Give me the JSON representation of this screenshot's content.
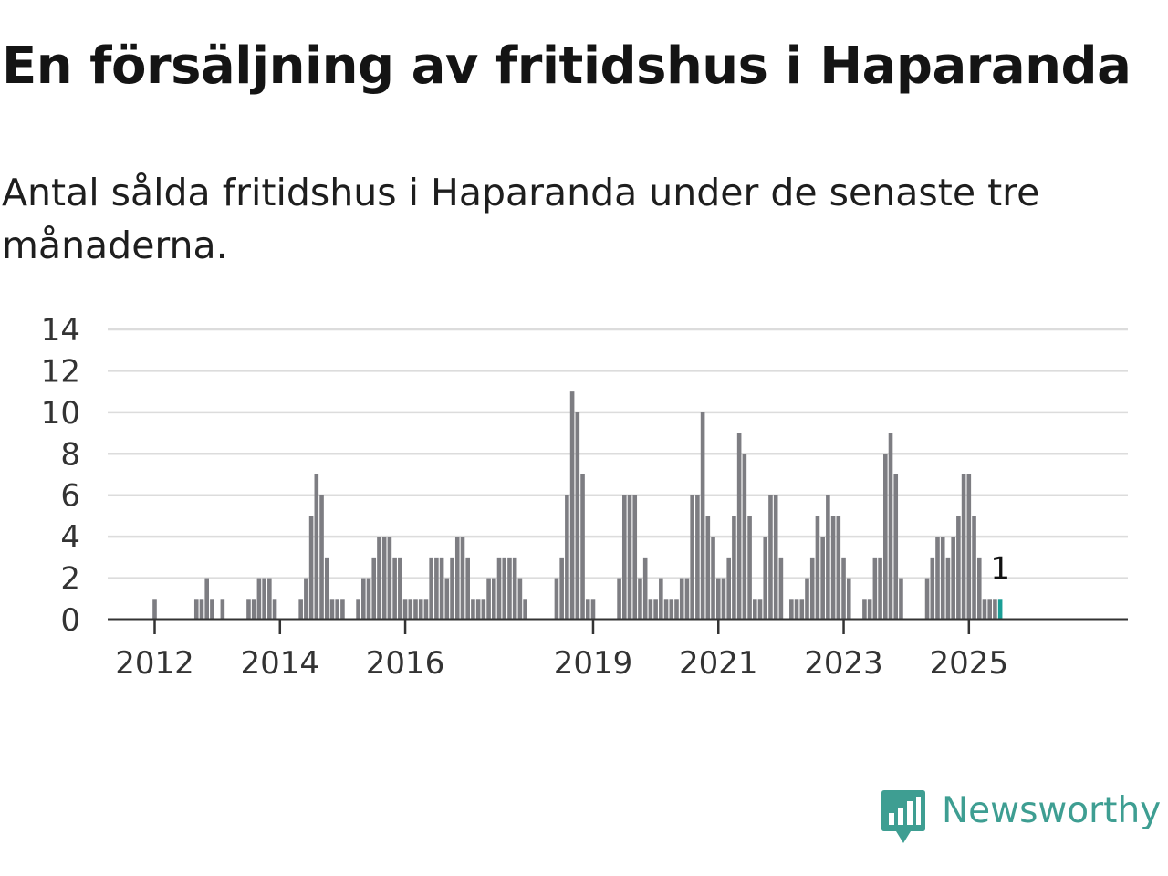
{
  "header": {
    "title": "En försäljning av fritidshus i Haparanda",
    "subtitle": "Antal sålda fritidshus i Haparanda under de senaste tre månaderna."
  },
  "brand": {
    "name": "Newsworthy",
    "logo_icon": "newsworthy-chart-bubble-icon",
    "color": "#3e9e92"
  },
  "chart_data": {
    "type": "bar",
    "start": "2011-12",
    "frequency": "monthly",
    "ylim": [
      0,
      14
    ],
    "yticks": [
      0,
      2,
      4,
      6,
      8,
      10,
      12,
      14
    ],
    "xticks": [
      {
        "label": "2012",
        "date": "2012-01"
      },
      {
        "label": "2014",
        "date": "2014-01"
      },
      {
        "label": "2016",
        "date": "2016-01"
      },
      {
        "label": "2019",
        "date": "2019-01"
      },
      {
        "label": "2021",
        "date": "2021-01"
      },
      {
        "label": "2023",
        "date": "2023-01"
      },
      {
        "label": "2025",
        "date": "2025-01"
      }
    ],
    "values": [
      0,
      1,
      0,
      0,
      0,
      0,
      0,
      0,
      0,
      1,
      1,
      2,
      1,
      0,
      1,
      0,
      0,
      0,
      0,
      1,
      1,
      2,
      2,
      2,
      1,
      0,
      0,
      0,
      0,
      1,
      2,
      5,
      7,
      6,
      3,
      1,
      1,
      1,
      0,
      0,
      1,
      2,
      2,
      3,
      4,
      4,
      4,
      3,
      3,
      1,
      1,
      1,
      1,
      1,
      3,
      3,
      3,
      2,
      3,
      4,
      4,
      3,
      1,
      1,
      1,
      2,
      2,
      3,
      3,
      3,
      3,
      2,
      1,
      0,
      0,
      0,
      0,
      0,
      2,
      3,
      6,
      11,
      10,
      7,
      1,
      1,
      0,
      0,
      0,
      0,
      2,
      6,
      6,
      6,
      2,
      3,
      1,
      1,
      2,
      1,
      1,
      1,
      2,
      2,
      6,
      6,
      10,
      5,
      4,
      2,
      2,
      3,
      5,
      9,
      8,
      5,
      1,
      1,
      4,
      6,
      6,
      3,
      0,
      1,
      1,
      1,
      2,
      3,
      5,
      4,
      6,
      5,
      5,
      3,
      2,
      0,
      0,
      1,
      1,
      3,
      3,
      8,
      9,
      7,
      2,
      0,
      0,
      0,
      0,
      2,
      3,
      4,
      4,
      3,
      4,
      5,
      7,
      7,
      5,
      3,
      1,
      1,
      1,
      1
    ],
    "highlight_color": "#1a9e96",
    "bar_color": "#7d7d82",
    "annotation": "1"
  }
}
